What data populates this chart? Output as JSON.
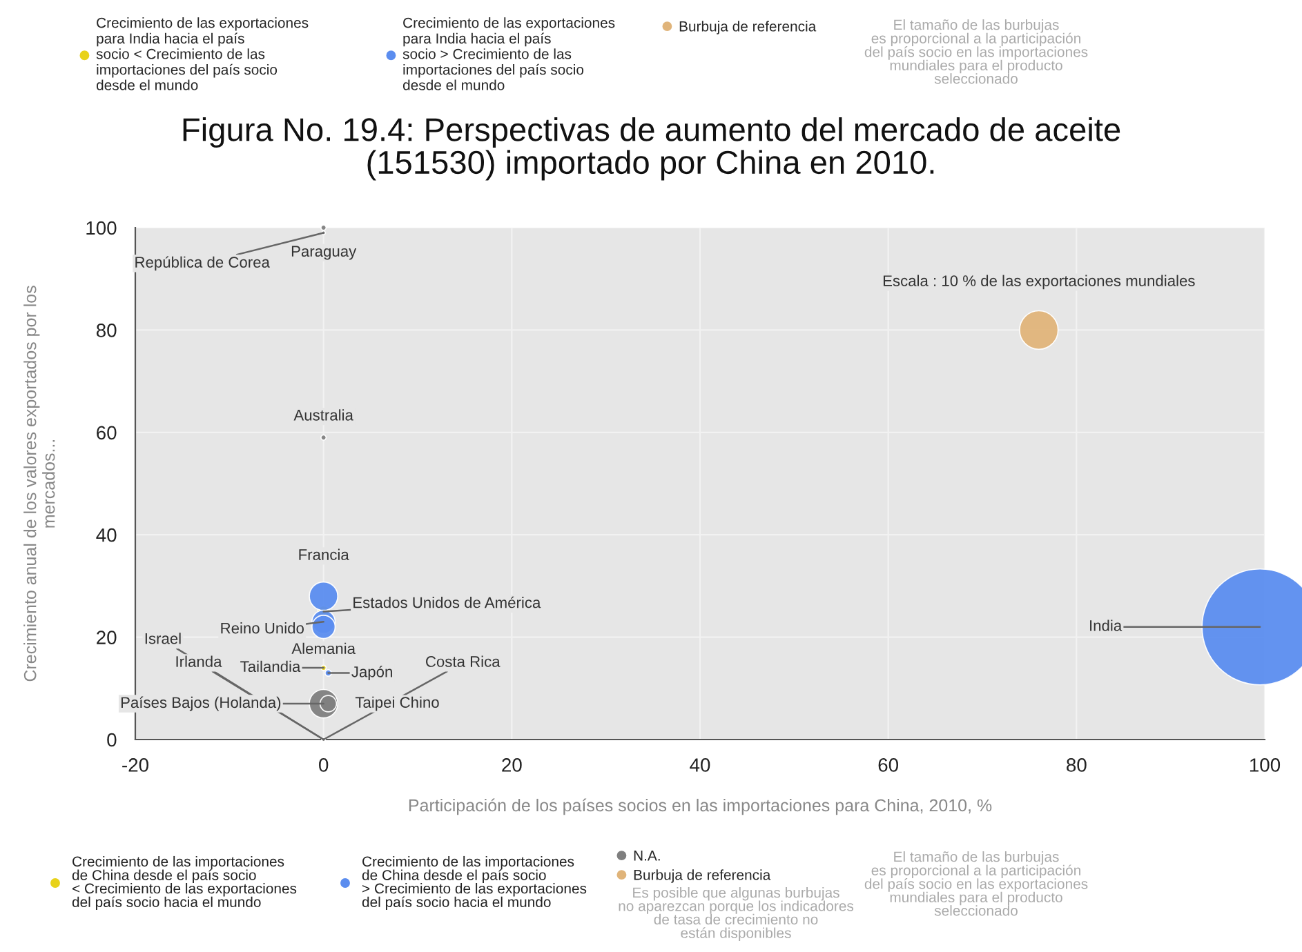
{
  "chart_data": {
    "type": "bubble",
    "title": "Figura No. 19.4: Perspectivas de aumento del mercado de aceite\n(151530) importado por China en 2010.",
    "xlabel": "Participación de los países socios en las importaciones para China, 2010, %",
    "ylabel": "Crecimiento anual de los valores exportados por los\nmercados...",
    "xlim": [
      -20,
      100
    ],
    "xticks": [
      -20,
      0,
      20,
      40,
      60,
      80,
      100
    ],
    "ylim": [
      0,
      100
    ],
    "yticks": [
      0,
      20,
      40,
      60,
      80,
      100
    ],
    "grid": true,
    "legend": "top",
    "series": [
      {
        "name": "Crecimiento de las exportaciones\npara India hacia el país\nsocio < Crecimiento de las\nimportaciones del país socio\ndesde el mundo",
        "color": "#e8d21a",
        "x": [
          0,
          0
        ],
        "values": [
          25,
          14
        ],
        "sizes": [
          0.01,
          0.002
        ]
      },
      {
        "name": "Crecimiento de las exportaciones\npara India hacia el país\nsocio > Crecimiento de las\nimportaciones del país socio\ndesde el mundo",
        "color": "#5b8def",
        "x": [
          0,
          0,
          0,
          0.5,
          99.5
        ],
        "values": [
          28,
          23,
          22,
          13,
          22
        ],
        "sizes": [
          0.06,
          0.04,
          0.04,
          0.003,
          1
        ]
      },
      {
        "name": "N.A.",
        "color": "#7f7f7f",
        "x": [
          0,
          0,
          0,
          0,
          0,
          0,
          0,
          0.5
        ],
        "values": [
          100,
          99,
          59,
          0,
          0,
          0,
          7,
          7
        ],
        "sizes": [
          0.002,
          0.001,
          0.002,
          0.001,
          0.001,
          0.001,
          0.06,
          0.02
        ]
      },
      {
        "name": "Burbuja de referencia",
        "color": "#e0b47a",
        "x": [
          76
        ],
        "values": [
          80
        ],
        "sizes": [
          0.11
        ]
      }
    ],
    "annotations": [
      "El tamaño de las burbujas\nes proporcional a la participación\ndel país socio en las importaciones\nmundiales para el producto\nseleccionado",
      "Crecimiento de las importaciones\nde China desde el país socio\n< Crecimiento de las exportaciones\ndel país socio hacia el mundo",
      "Crecimiento de las importaciones\nde China desde el país socio\n> Crecimiento de las exportaciones\ndel país socio hacia el mundo",
      "Es posible que algunas burbujas\nno aparezcan porque los indicadores\nde tasa de crecimiento no\nestán disponibles",
      "El tamaño de las burbujas\nes proporcional a la participación\ndel país socio en las exportaciones\nmundiales para el producto\nseleccionado",
      {
        "text": "Paraguay",
        "x": 0,
        "y": 100
      },
      {
        "text": "República de Corea",
        "x": 0,
        "y": 99
      },
      {
        "text": "Australia",
        "x": 0,
        "y": 59
      },
      {
        "text": "Francia",
        "x": 0,
        "y": 28
      },
      {
        "text": "Estados Unidos de América",
        "x": 0,
        "y": 25
      },
      {
        "text": "Reino Unido",
        "x": 0,
        "y": 23
      },
      {
        "text": "Alemania",
        "x": 0,
        "y": 22
      },
      {
        "text": "Tailandia",
        "x": 0,
        "y": 14
      },
      {
        "text": "Japón",
        "x": 0.5,
        "y": 13
      },
      {
        "text": "Israel",
        "x": 0,
        "y": 0
      },
      {
        "text": "Irlanda",
        "x": 0,
        "y": 0
      },
      {
        "text": "Países Bajos (Holanda)",
        "x": 0,
        "y": 7
      },
      {
        "text": "Taipei Chino",
        "x": 0.5,
        "y": 7
      },
      {
        "text": "Costa Rica",
        "x": 0,
        "y": 0
      },
      {
        "text": "India",
        "x": 99.5,
        "y": 22
      },
      {
        "text": "Escala : 10 % de las exportaciones mundiales",
        "x": 76,
        "y": 80
      }
    ]
  }
}
